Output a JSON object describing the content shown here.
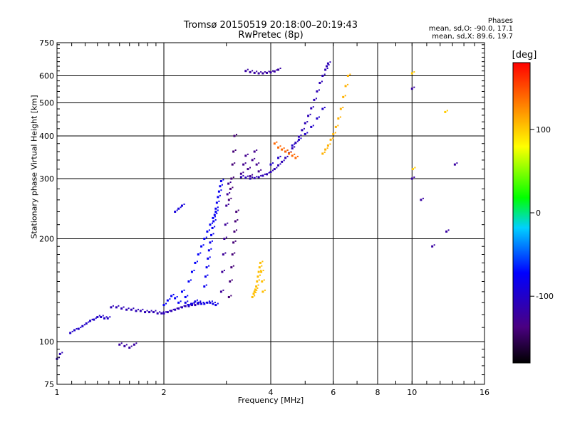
{
  "chart_data": {
    "type": "scatter",
    "title": "Tromsø 20150519 20:18:00–20:19:43",
    "subtitle": "RwPretec (8p)",
    "xlabel": "Frequency [MHz]",
    "ylabel": "Stationary phase Virtual Height [km]",
    "x_scale": "log",
    "y_scale": "log",
    "xlim": [
      1,
      16
    ],
    "ylim": [
      75,
      750
    ],
    "x_ticks": [
      "1",
      "2",
      "4",
      "6",
      "8",
      "10",
      "16"
    ],
    "y_ticks": [
      "75",
      "100",
      "200",
      "300",
      "400",
      "500",
      "600",
      "750"
    ],
    "grid": true,
    "phases_title": "Phases",
    "phases_o": "mean, sd,O: -90.0, 17.1",
    "phases_x": "mean, sd,X:  89.6, 19.7",
    "colorbar": {
      "label": "[deg]",
      "range": [
        -180,
        180
      ],
      "ticks": [
        "100",
        "0",
        "-100"
      ]
    },
    "series": [
      {
        "x": [
          1.09,
          1.12,
          1.15,
          1.18,
          1.21,
          1.24,
          1.27,
          1.3,
          1.33,
          1.36,
          1.39
        ],
        "y": [
          106,
          108,
          109,
          111,
          113,
          115,
          116,
          118,
          118,
          117,
          117
        ],
        "phase": -100
      },
      {
        "x": [
          1.42,
          1.47,
          1.52,
          1.57,
          1.62,
          1.67,
          1.72,
          1.77,
          1.82,
          1.87,
          1.92,
          1.97,
          2.0,
          2.05,
          2.1,
          2.15,
          2.2,
          2.25,
          2.3,
          2.35,
          2.4,
          2.45,
          2.5
        ],
        "y": [
          126,
          126,
          125,
          124,
          124,
          123,
          123,
          122,
          122,
          122,
          121,
          121,
          121,
          122,
          123,
          124,
          125,
          126,
          127,
          127,
          128,
          128,
          129
        ],
        "phase": -110
      },
      {
        "x": [
          2.3,
          2.35,
          2.4,
          2.45,
          2.5,
          2.55,
          2.6,
          2.65,
          2.7,
          2.75,
          2.8
        ],
        "y": [
          130,
          128,
          129,
          131,
          130,
          129,
          129,
          130,
          130,
          129,
          128
        ],
        "phase": -85
      },
      {
        "x": [
          2.0,
          2.05,
          2.1,
          2.15,
          2.2,
          2.25,
          2.3,
          2.35,
          2.4,
          2.45,
          2.5,
          2.55,
          2.6,
          2.65,
          2.7,
          2.75,
          2.8
        ],
        "y": [
          128,
          132,
          136,
          134,
          130,
          140,
          135,
          150,
          160,
          170,
          180,
          190,
          200,
          210,
          220,
          230,
          240
        ],
        "phase": -75
      },
      {
        "x": [
          2.6,
          2.62,
          2.64,
          2.66,
          2.68,
          2.7,
          2.72,
          2.74,
          2.76,
          2.78,
          2.8,
          2.82,
          2.84,
          2.86,
          2.88,
          2.9
        ],
        "y": [
          145,
          155,
          165,
          175,
          185,
          195,
          205,
          215,
          225,
          235,
          245,
          255,
          265,
          275,
          285,
          295
        ],
        "phase": -80
      },
      {
        "x": [
          3.05,
          3.07,
          3.1,
          3.12,
          3.14,
          3.16,
          3.18,
          3.2,
          3.05,
          3.08,
          3.1,
          3.12,
          3.14,
          3.16
        ],
        "y": [
          135,
          150,
          165,
          180,
          195,
          210,
          225,
          240,
          260,
          280,
          300,
          330,
          360,
          400
        ],
        "phase": -140
      },
      {
        "x": [
          2.9,
          2.92,
          2.94,
          2.96,
          2.98,
          3.0,
          3.02,
          3.04
        ],
        "y": [
          140,
          160,
          180,
          200,
          220,
          250,
          270,
          290
        ],
        "phase": -125
      },
      {
        "x": [
          3.3,
          3.4,
          3.5,
          3.6,
          3.7,
          3.8,
          3.9,
          4.0,
          4.1,
          4.2,
          4.3,
          4.4,
          4.5,
          4.6,
          4.7,
          4.8,
          4.9,
          5.0,
          5.1,
          5.2,
          5.3,
          5.4,
          5.5,
          5.6,
          5.7,
          5.75,
          5.8
        ],
        "y": [
          303,
          302,
          300,
          301,
          303,
          306,
          309,
          314,
          320,
          328,
          336,
          345,
          356,
          368,
          382,
          398,
          416,
          436,
          458,
          482,
          510,
          540,
          572,
          600,
          625,
          640,
          652
        ],
        "phase": -110
      },
      {
        "x": [
          3.3,
          3.35,
          3.4,
          3.45,
          3.5,
          3.55,
          3.6,
          3.65,
          3.7
        ],
        "y": [
          310,
          330,
          350,
          320,
          305,
          340,
          360,
          330,
          315
        ],
        "phase": -130
      },
      {
        "x": [
          4.0,
          4.2,
          4.4,
          4.6,
          4.8,
          5.0,
          5.2,
          5.4,
          5.6
        ],
        "y": [
          330,
          345,
          360,
          375,
          390,
          405,
          425,
          450,
          480
        ],
        "phase": -100
      },
      {
        "x": [
          3.4,
          3.5,
          3.6,
          3.7,
          3.8,
          3.9,
          4.0,
          4.1,
          4.2
        ],
        "y": [
          620,
          615,
          612,
          610,
          610,
          612,
          614,
          618,
          625
        ],
        "phase": -120
      },
      {
        "x": [
          2.15,
          2.2,
          2.25
        ],
        "y": [
          240,
          245,
          250
        ],
        "phase": -90
      },
      {
        "x": [
          3.55,
          3.58,
          3.6,
          3.62,
          3.64,
          3.66,
          3.68,
          3.7,
          3.72,
          3.74,
          3.76,
          3.78,
          3.8
        ],
        "y": [
          135,
          138,
          140,
          142,
          145,
          150,
          155,
          160,
          165,
          170,
          160,
          150,
          140
        ],
        "phase": 105
      },
      {
        "x": [
          4.1,
          4.2,
          4.3,
          4.4,
          4.5,
          4.6,
          4.7
        ],
        "y": [
          380,
          370,
          365,
          360,
          355,
          350,
          345
        ],
        "phase": 140
      },
      {
        "x": [
          5.6,
          5.7,
          5.8,
          5.9,
          6.0,
          6.1,
          6.2,
          6.3,
          6.4,
          6.5,
          6.6
        ],
        "y": [
          355,
          365,
          375,
          390,
          405,
          425,
          450,
          480,
          520,
          560,
          600
        ],
        "phase": 110
      },
      {
        "x": [
          1.5,
          1.55,
          1.6,
          1.65
        ],
        "y": [
          98,
          97,
          96,
          98
        ],
        "phase": -120
      },
      {
        "x": [
          1.0,
          1.02
        ],
        "y": [
          89,
          92
        ],
        "phase": -110
      },
      {
        "x": [
          10.0,
          10.0,
          11.4,
          12.5,
          13.2,
          10.6
        ],
        "y": [
          550,
          300,
          190,
          210,
          330,
          260
        ],
        "phase": -120
      },
      {
        "x": [
          10.0,
          10.05,
          12.4
        ],
        "y": [
          610,
          320,
          470
        ],
        "phase": 100
      }
    ]
  }
}
